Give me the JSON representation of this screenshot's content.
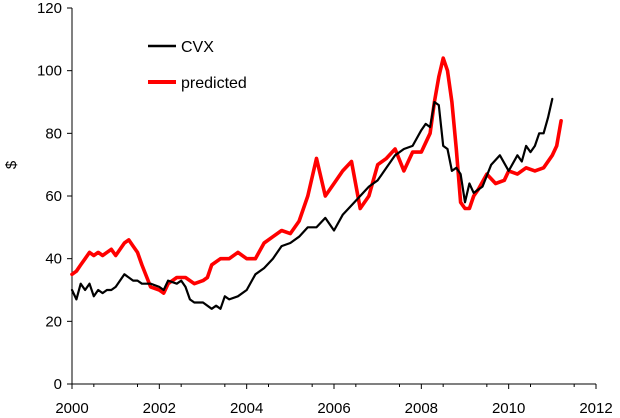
{
  "chart_data": {
    "type": "line",
    "title": "",
    "xlabel": "",
    "ylabel": "$",
    "xlim": [
      2000,
      2012
    ],
    "ylim": [
      0,
      120
    ],
    "x_ticks": [
      "2000",
      "2002",
      "2004",
      "2006",
      "2008",
      "2010",
      "2012"
    ],
    "y_ticks": [
      "0",
      "20",
      "40",
      "60",
      "80",
      "100",
      "120"
    ],
    "grid": false,
    "legend_position": "top-left",
    "series": [
      {
        "name": "CVX",
        "color": "#000000",
        "x": [
          2000.0,
          2000.1,
          2000.2,
          2000.3,
          2000.4,
          2000.5,
          2000.6,
          2000.7,
          2000.8,
          2000.9,
          2001.0,
          2001.2,
          2001.4,
          2001.5,
          2001.6,
          2001.8,
          2002.0,
          2002.1,
          2002.2,
          2002.4,
          2002.5,
          2002.6,
          2002.7,
          2002.8,
          2003.0,
          2003.2,
          2003.3,
          2003.4,
          2003.5,
          2003.6,
          2003.8,
          2004.0,
          2004.2,
          2004.4,
          2004.6,
          2004.8,
          2005.0,
          2005.2,
          2005.4,
          2005.6,
          2005.8,
          2006.0,
          2006.2,
          2006.4,
          2006.6,
          2006.8,
          2007.0,
          2007.2,
          2007.4,
          2007.6,
          2007.8,
          2008.0,
          2008.1,
          2008.2,
          2008.3,
          2008.4,
          2008.5,
          2008.6,
          2008.7,
          2008.8,
          2008.9,
          2009.0,
          2009.1,
          2009.2,
          2009.3,
          2009.4,
          2009.6,
          2009.8,
          2010.0,
          2010.2,
          2010.3,
          2010.4,
          2010.5,
          2010.6,
          2010.7,
          2010.8,
          2010.9,
          2011.0
        ],
        "y": [
          30,
          27,
          32,
          30,
          32,
          28,
          30,
          29,
          30,
          30,
          31,
          35,
          33,
          33,
          32,
          32,
          31,
          30,
          33,
          32,
          33,
          31,
          27,
          26,
          26,
          24,
          25,
          24,
          28,
          27,
          28,
          30,
          35,
          37,
          40,
          44,
          45,
          47,
          50,
          50,
          53,
          49,
          54,
          57,
          60,
          63,
          65,
          69,
          73,
          75,
          76,
          81,
          83,
          82,
          90,
          89,
          76,
          75,
          68,
          69,
          67,
          58,
          64,
          61,
          62,
          63,
          70,
          73,
          68,
          73,
          71,
          76,
          74,
          76,
          80,
          80,
          85,
          91
        ]
      },
      {
        "name": "predicted",
        "color": "#ff0000",
        "x": [
          2000.0,
          2000.1,
          2000.2,
          2000.3,
          2000.4,
          2000.5,
          2000.6,
          2000.7,
          2000.8,
          2000.9,
          2001.0,
          2001.2,
          2001.3,
          2001.4,
          2001.5,
          2001.6,
          2001.8,
          2002.0,
          2002.1,
          2002.2,
          2002.4,
          2002.6,
          2002.8,
          2003.0,
          2003.1,
          2003.2,
          2003.4,
          2003.6,
          2003.8,
          2004.0,
          2004.2,
          2004.4,
          2004.6,
          2004.8,
          2005.0,
          2005.2,
          2005.4,
          2005.6,
          2005.8,
          2006.0,
          2006.2,
          2006.4,
          2006.6,
          2006.8,
          2007.0,
          2007.2,
          2007.4,
          2007.6,
          2007.8,
          2008.0,
          2008.1,
          2008.2,
          2008.3,
          2008.4,
          2008.5,
          2008.6,
          2008.7,
          2008.8,
          2008.9,
          2009.0,
          2009.1,
          2009.2,
          2009.3,
          2009.5,
          2009.7,
          2009.9,
          2010.0,
          2010.2,
          2010.4,
          2010.6,
          2010.8,
          2011.0,
          2011.1,
          2011.2
        ],
        "y": [
          35,
          36,
          38,
          40,
          42,
          41,
          42,
          41,
          42,
          43,
          41,
          45,
          46,
          44,
          42,
          38,
          31,
          30,
          29,
          32,
          34,
          34,
          32,
          33,
          34,
          38,
          40,
          40,
          42,
          40,
          40,
          45,
          47,
          49,
          48,
          52,
          60,
          72,
          60,
          64,
          68,
          71,
          56,
          60,
          70,
          72,
          75,
          68,
          74,
          74,
          77,
          80,
          90,
          98,
          104,
          100,
          90,
          75,
          58,
          56,
          56,
          60,
          62,
          67,
          64,
          65,
          68,
          67,
          69,
          68,
          69,
          73,
          76,
          84
        ]
      }
    ]
  }
}
